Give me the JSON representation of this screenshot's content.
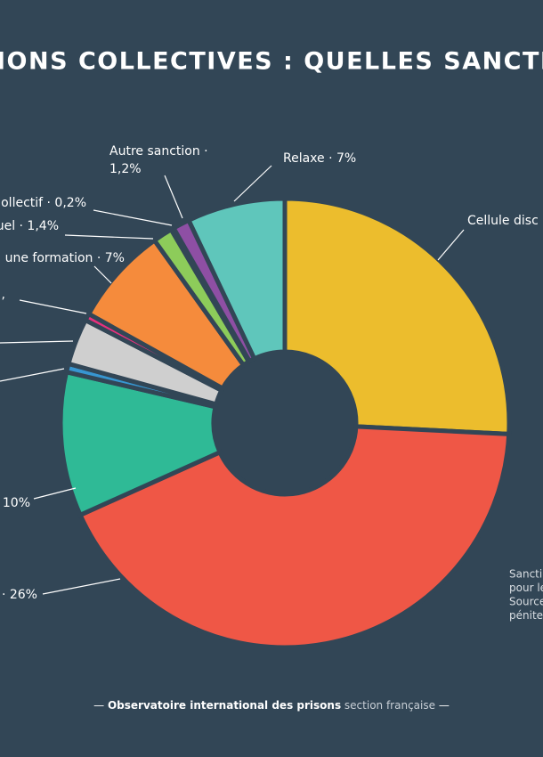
{
  "chart_data": {
    "type": "donut",
    "title": "IONS COLLECTIVES : QUELLES SANCTION",
    "categories": [
      "Cellule disc",
      "· 26%",
      "10%",
      null,
      null,
      ",",
      "une formation · 7%",
      "uel · 1,4%",
      "ollectif · 0,2%",
      [
        "Autre sanction ·",
        "1,2%"
      ],
      "Relaxe · 7%"
    ],
    "values": [
      25.6,
      42.2,
      10.3,
      0.6,
      3.3,
      0.5,
      7,
      1.4,
      0.2,
      1.2,
      7
    ],
    "colors": [
      "#ecbd2d",
      "#ef5746",
      "#2fba96",
      "#3796d1",
      "#cfcfcf",
      "#e8307c",
      "#f58b3c",
      "#8dcc5a",
      "#f2e23a",
      "#8e4fa4",
      "#5fc6bb"
    ],
    "notes": [
      "Sancti",
      "pour le",
      "Source",
      "pénite"
    ],
    "footer": {
      "dash_left": "—",
      "organisation": "Observatoire international des prisons",
      "section": "section française",
      "dash_right": "—"
    }
  }
}
